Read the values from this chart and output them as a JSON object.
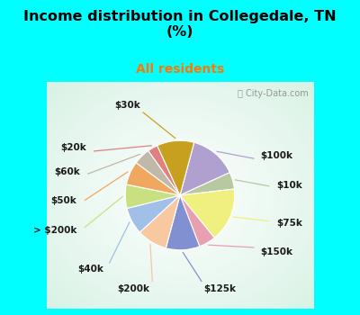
{
  "title": "Income distribution in Collegedale, TN\n(%)",
  "subtitle": "All residents",
  "subtitle_color": "#ff6600",
  "background_top": "#00FFFF",
  "labels": [
    "$100k",
    "$10k",
    "$75k",
    "$150k",
    "$125k",
    "$200k",
    "$40k",
    "> $200k",
    "$50k",
    "$60k",
    "$20k",
    "$30k"
  ],
  "values": [
    14,
    5,
    16,
    5,
    10,
    9,
    8,
    7,
    7,
    5,
    3,
    11
  ],
  "colors": [
    "#b0a0d0",
    "#b8c8a0",
    "#f0f080",
    "#e8a0b0",
    "#8090d0",
    "#f8c8a0",
    "#a0c0e8",
    "#c8e080",
    "#f0a860",
    "#c0b8a8",
    "#e08080",
    "#c8a020"
  ],
  "startangle": 75,
  "wedge_linewidth": 0.8,
  "wedge_edgecolor": "#ffffff"
}
